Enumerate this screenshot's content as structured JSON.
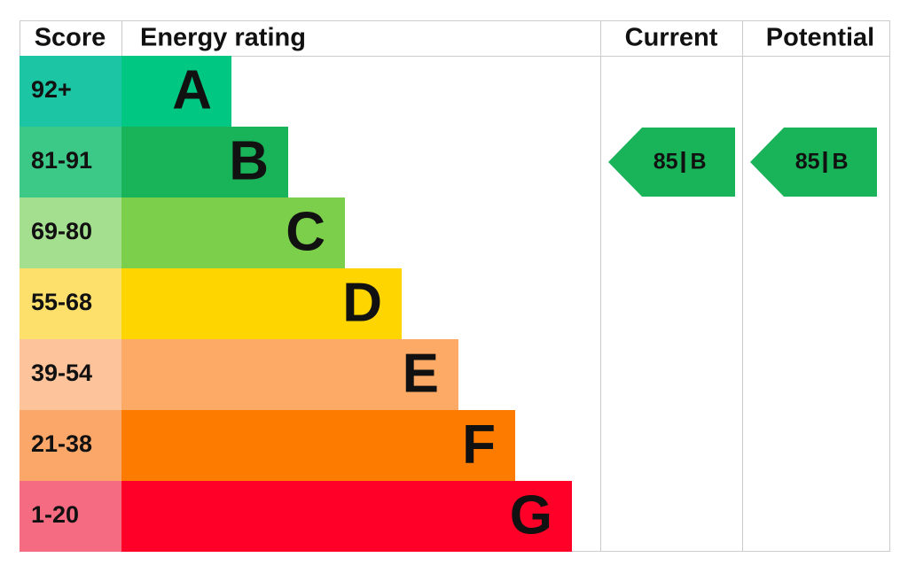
{
  "header": {
    "score": "Score",
    "energy_rating": "Energy rating",
    "current": "Current",
    "potential": "Potential"
  },
  "bands": [
    {
      "score": "92+",
      "letter": "A"
    },
    {
      "score": "81-91",
      "letter": "B"
    },
    {
      "score": "69-80",
      "letter": "C"
    },
    {
      "score": "55-68",
      "letter": "D"
    },
    {
      "score": "39-54",
      "letter": "E"
    },
    {
      "score": "21-38",
      "letter": "F"
    },
    {
      "score": "1-20",
      "letter": "G"
    }
  ],
  "current": {
    "score": "85",
    "letter": "B"
  },
  "potential": {
    "score": "85",
    "letter": "B"
  }
}
